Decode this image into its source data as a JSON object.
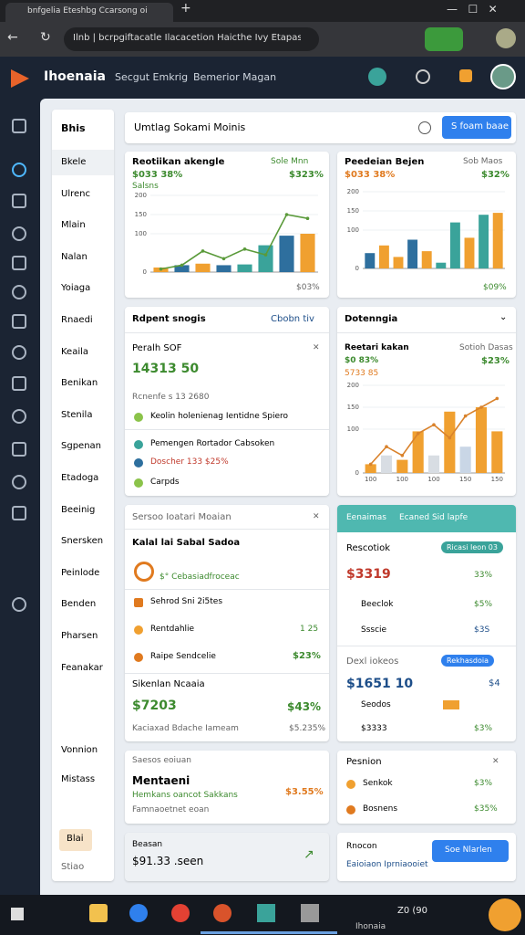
{
  "browser": {
    "tab": "bnfgelia Eteshbg Ccarsong oi",
    "address": "Ilnb | bcrpgiftacatle Ilacacetion Haicthe Ivy Etapas tani"
  },
  "app": {
    "brand": "Ihoenaia",
    "nav": [
      "Secgut Emkrig",
      "Bemerior Magan"
    ]
  },
  "menu": {
    "header": "Bhis",
    "items": [
      "Bkele",
      "Ulrenc",
      "Mlain",
      "Nalan",
      "Yoiaga",
      "Rnaedi",
      "Keaila",
      "Benikan",
      "Stenila",
      "Sgpenan",
      "Etadoga",
      "Beeinig",
      "Snersken",
      "Peinlode",
      "Benden",
      "Pharsen",
      "Feanakar",
      "Vonnion",
      "Mistass"
    ],
    "badge": "Blai",
    "footer": "Stiao"
  },
  "toolbar": {
    "title": "Umtlag Sokami Moinis",
    "button": "S foam baae"
  },
  "chart_data": [
    {
      "type": "bar",
      "title": "Reotiikan akengle",
      "subtitle": "$033 38%",
      "annotations": [
        "Sole Mnn",
        "$323%",
        "Salsns",
        "$03%"
      ],
      "categories": [
        null,
        null,
        null,
        null,
        null,
        null,
        null,
        null
      ],
      "series": [
        {
          "values": [
            12,
            18,
            22,
            18,
            20,
            70,
            95,
            100
          ],
          "colors": [
            "#f0a030",
            "#2e6f9e",
            "#f0a030",
            "#2e6f9e",
            "#3aa39a",
            "#3aa39a",
            "#2e6f9e",
            "#f0a030"
          ]
        },
        {
          "type": "line",
          "color": "#5a9a3a",
          "values": [
            8,
            18,
            55,
            35,
            60,
            45,
            150,
            140
          ]
        }
      ],
      "ylim": [
        0,
        200
      ],
      "yticks": [
        0,
        100,
        150,
        200
      ]
    },
    {
      "type": "bar",
      "title": "Peedeian Bejen",
      "subtitle": "$033 38%",
      "annotations": [
        "Sob Maos",
        "$32%",
        "$09%"
      ],
      "categories": [
        null,
        null,
        null,
        null,
        null,
        null,
        null,
        null,
        null,
        null
      ],
      "series": [
        {
          "values": [
            40,
            60,
            30,
            75,
            45,
            15,
            120,
            80,
            140,
            145
          ],
          "colors": [
            "#2e6f9e",
            "#f0a030",
            "#f0a030",
            "#2e6f9e",
            "#f0a030",
            "#3aa39a",
            "#3aa39a",
            "#f0a030",
            "#3aa39a",
            "#f0a030"
          ]
        }
      ],
      "ylim": [
        0,
        200
      ],
      "yticks": [
        0,
        100,
        150,
        200
      ]
    },
    {
      "type": "bar",
      "title": "Reetari kakan",
      "subtitle": "$0 83%",
      "annotations": [
        "Sotioh Dasas",
        "$23%",
        "5733 85"
      ],
      "categories": [
        "100",
        null,
        "100",
        null,
        "100",
        null,
        "150",
        null,
        "150"
      ],
      "series": [
        {
          "values": [
            20,
            40,
            30,
            95,
            40,
            140,
            60,
            150,
            95
          ],
          "colors": [
            "#f0a030",
            "#d8dde3",
            "#f0a030",
            "#f0a030",
            "#d8dde3",
            "#f0a030",
            "#c9d6e6",
            "#f0a030",
            "#f0a030"
          ]
        },
        {
          "type": "line",
          "color": "#d9822b",
          "values": [
            20,
            60,
            40,
            90,
            110,
            80,
            130,
            150,
            170
          ]
        }
      ],
      "ylim": [
        0,
        200
      ],
      "yticks": [
        0,
        100,
        150,
        200
      ]
    }
  ],
  "card_c": {
    "header": "Rdpent snogis",
    "link": "Cbobn tiv",
    "title": "Peralh SOF",
    "value": "14313 50",
    "note": "Rcnenfe s 13 2680",
    "items": [
      "Keolin holenienag Ientidne Spiero",
      "Pemengen Rortador Cabsoken",
      "Doscher 133 $25%",
      "Carpds"
    ]
  },
  "card_d": {
    "header": "Dotenngia"
  },
  "card_e": {
    "header": "Sersoo Ioatari Moaian",
    "title": "Kalal lai Sabal Sadoa",
    "sub": "$° Cebasiadfroceac",
    "rows": [
      [
        "Sehrod Sni 2i5tes",
        ""
      ],
      [
        "Rentdahlie",
        "1 25"
      ],
      [
        "Raipe Sendcelie",
        "$23%"
      ]
    ],
    "section": "Sikenlan Ncaaia",
    "value": "$7203",
    "value_note": "$43%",
    "footer": "Kaciaxad Bdache Iameam",
    "footer_value": "$5.235%"
  },
  "card_f": {
    "header": "Eenaimas",
    "header2": "Ecaned Sid lapfe",
    "title": "Rescotiok",
    "pill": "Ricasi Ieon 03",
    "value": "$3319",
    "value_pct": "33%",
    "rows": [
      [
        "Beeclok",
        "$5%"
      ],
      [
        "Ssscie",
        "$3S"
      ]
    ],
    "title2": "Dexl iokeos",
    "pill2": "Rekhasdoia",
    "value2": "$1651 10",
    "value2_pct": "$4",
    "rows2": [
      [
        "Seodos",
        ""
      ],
      [
        "$3333",
        "$3%"
      ]
    ]
  },
  "card_g": {
    "header": "Saesos eoiuan",
    "title": "Mentaeni",
    "sub": "Hemkans oancot Sakkans",
    "note": "Famnaoetnet eoan",
    "value": "$3.55%"
  },
  "card_h": {
    "header": "Pesnion",
    "rows": [
      [
        "Senkok",
        "$3%"
      ],
      [
        "Bosnens",
        "$35%"
      ]
    ]
  },
  "card_i": {
    "title": "Beasan",
    "value": "$91.33 .seen"
  },
  "card_j": {
    "title": "Rnocon",
    "sub": "Eaioiaon Iprniaooiet",
    "button": "Soe Nlarlen"
  },
  "taskbar": {
    "label": "Ihonaia",
    "tray": "Z0 (90"
  }
}
